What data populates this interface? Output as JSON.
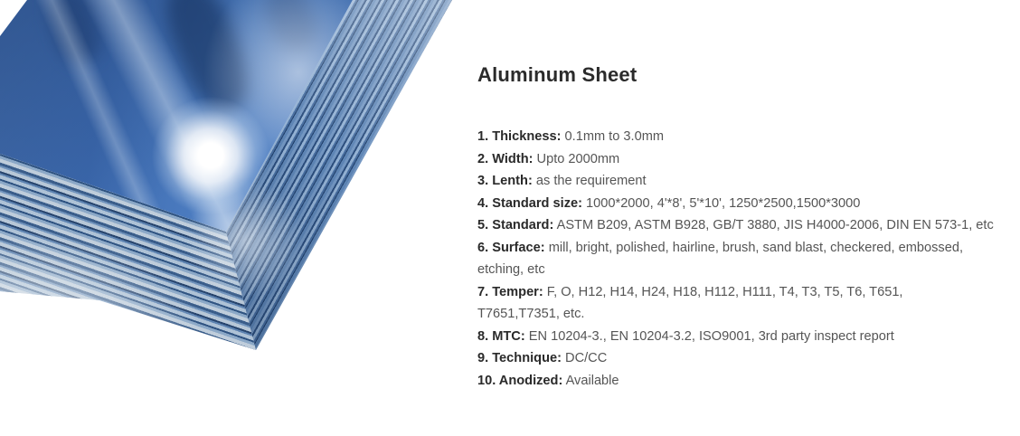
{
  "product": {
    "title": "Aluminum Sheet",
    "photo": {
      "alt": "Stack of aluminum sheets covered with blue protective film",
      "colors": {
        "film_blue": "#4f80c4",
        "edge_light": "#bfcddb",
        "edge_dark": "#2c4e7d",
        "background": "#ffffff"
      }
    },
    "specs": {
      "items": [
        {
          "label": "1. Thickness:",
          "value": "0.1mm to 3.0mm"
        },
        {
          "label": "2. Width:",
          "value": "Upto 2000mm"
        },
        {
          "label": "3. Lenth:",
          "value": "as the requirement"
        },
        {
          "label": "4. Standard size:",
          "value": "1000*2000, 4'*8', 5'*10', 1250*2500,1500*3000"
        },
        {
          "label": "5. Standard:",
          "value": "ASTM B209, ASTM B928, GB/T 3880, JIS H4000-2006, DIN EN 573-1, etc"
        },
        {
          "label": "6. Surface:",
          "value": "mill, bright, polished, hairline, brush, sand blast, checkered, embossed,\netching, etc"
        },
        {
          "label": "7. Temper:",
          "value": "F, O, H12, H14, H24, H18, H112, H111, T4, T3, T5, T6, T651,\nT7651,T7351, etc."
        },
        {
          "label": "8. MTC:",
          "value": "EN 10204-3., EN 10204-3.2, ISO9001, 3rd party inspect report"
        },
        {
          "label": "9. Technique:",
          "value": "DC/CC"
        },
        {
          "label": "10. Anodized:",
          "value": "Available"
        }
      ]
    }
  }
}
